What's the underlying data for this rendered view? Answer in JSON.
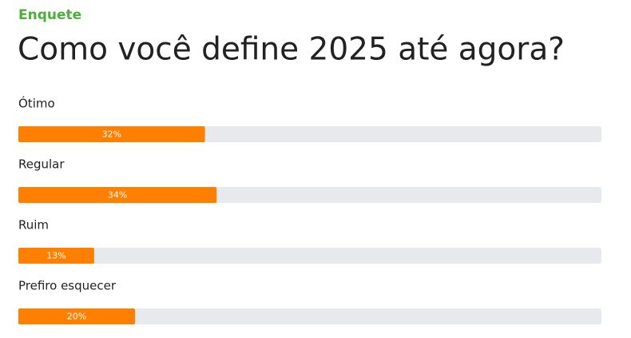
{
  "chart_data": {
    "type": "bar",
    "orientation": "horizontal",
    "kicker": "Enquete",
    "title": "Como você define 2025 até agora?",
    "categories": [
      "Ótimo",
      "Regular",
      "Ruim",
      "Prefiro esquecer"
    ],
    "values": [
      32,
      34,
      13,
      20
    ],
    "value_labels": [
      "32%",
      "34%",
      "13%",
      "20%"
    ],
    "xlim": [
      0,
      100
    ],
    "color": "#ff8000",
    "track_color": "#e8e9ec",
    "kicker_color": "#4caf3a"
  }
}
